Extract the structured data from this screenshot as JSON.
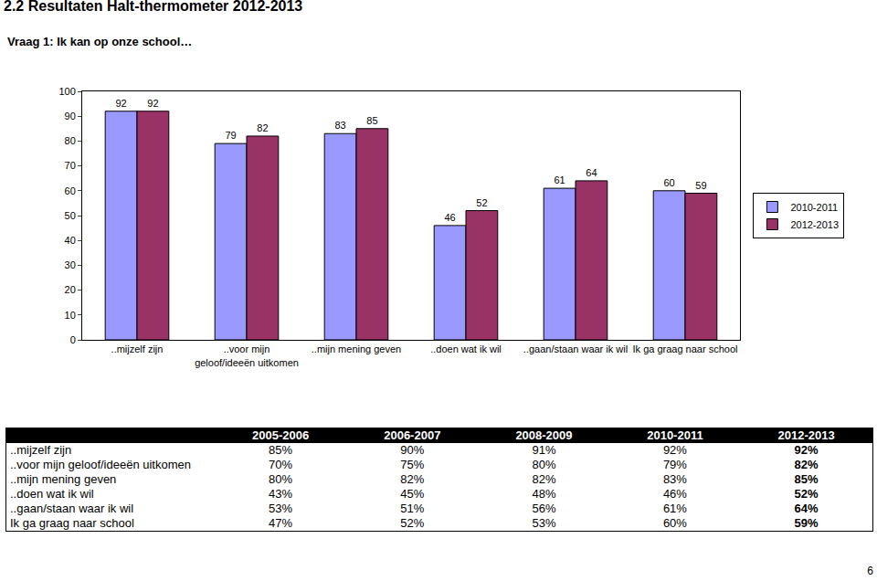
{
  "page": {
    "heading": "2.2 Resultaten Halt-thermometer 2012-2013",
    "question": "Vraag 1: Ik kan op onze school…",
    "page_number": "6"
  },
  "chart_data": {
    "type": "bar",
    "categories": [
      "..mijzelf zijn",
      "..voor mijn geloof/ideeën uitkomen",
      "..mijn mening geven",
      "..doen wat ik wil",
      "..gaan/staan waar ik wil",
      "Ik ga graag naar school"
    ],
    "series": [
      {
        "name": "2010-2011",
        "color": "#9999ff",
        "values": [
          92,
          79,
          83,
          46,
          61,
          60
        ]
      },
      {
        "name": "2012-2013",
        "color": "#993366",
        "values": [
          92,
          82,
          85,
          52,
          64,
          59
        ]
      }
    ],
    "ylim": [
      0,
      100
    ],
    "yticks": [
      0,
      10,
      20,
      30,
      40,
      50,
      60,
      70,
      80,
      90,
      100
    ],
    "grid": false,
    "legend": "right",
    "data_labels": true
  },
  "table": {
    "header": [
      "",
      "2005-2006",
      "2006-2007",
      "2008-2009",
      "2010-2011",
      "2012-2013"
    ],
    "rows": [
      [
        "..mijzelf zijn",
        "85%",
        "90%",
        "91%",
        "92%",
        "92%"
      ],
      [
        "..voor mijn geloof/ideeën uitkomen",
        "70%",
        "75%",
        "80%",
        "79%",
        "82%"
      ],
      [
        "..mijn mening geven",
        "80%",
        "82%",
        "82%",
        "83%",
        "85%"
      ],
      [
        "..doen wat ik wil",
        "43%",
        "45%",
        "48%",
        "46%",
        "52%"
      ],
      [
        "..gaan/staan waar ik wil",
        "53%",
        "51%",
        "56%",
        "61%",
        "64%"
      ],
      [
        "Ik ga graag naar school",
        "47%",
        "52%",
        "53%",
        "60%",
        "59%"
      ]
    ]
  }
}
